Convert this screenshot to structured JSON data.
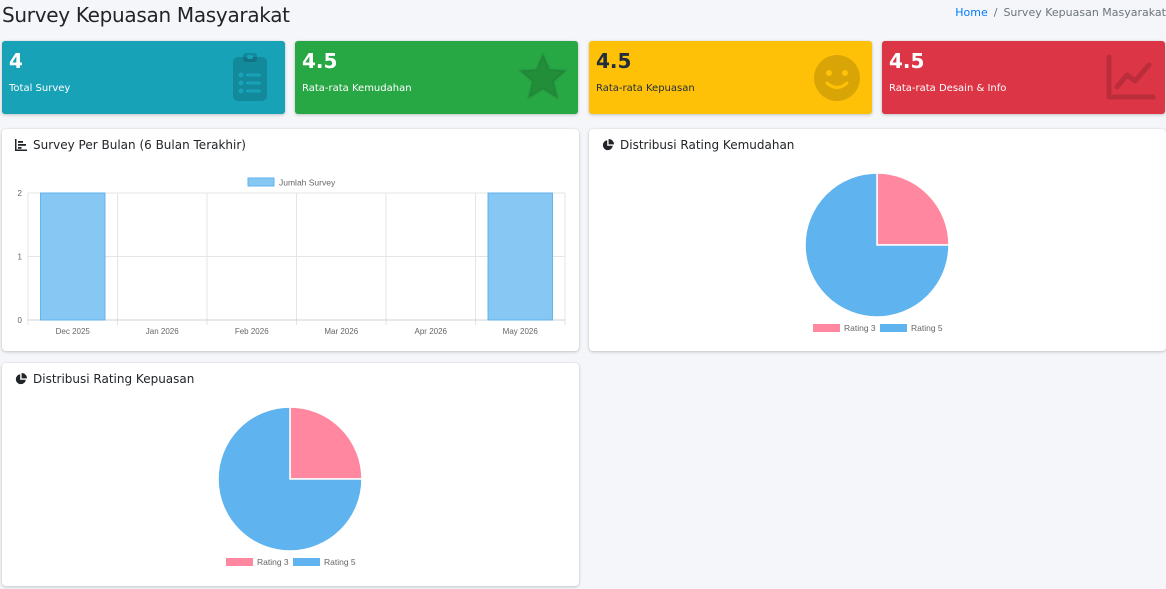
{
  "header": {
    "title": "Survey Kepuasan Masyarakat",
    "breadcrumb": {
      "home": "Home",
      "separator": "/",
      "current": "Survey Kepuasan Masyarakat"
    }
  },
  "stats": [
    {
      "value": "4",
      "label": "Total Survey",
      "color": "#17a2b8",
      "icon": "clipboard-list-icon"
    },
    {
      "value": "4.5",
      "label": "Rata-rata Kemudahan",
      "color": "#28a745",
      "icon": "star-icon"
    },
    {
      "value": "4.5",
      "label": "Rata-rata Kepuasan",
      "color": "#ffc107",
      "icon": "smile-icon"
    },
    {
      "value": "4.5",
      "label": "Rata-rata Desain & Info",
      "color": "#dc3545",
      "icon": "chart-line-icon"
    }
  ],
  "cards": {
    "monthly": {
      "title": "Survey Per Bulan (6 Bulan Terakhir)",
      "icon": "chart-bar-icon"
    },
    "kemudahan": {
      "title": "Distribusi Rating Kemudahan",
      "icon": "chart-pie-icon"
    },
    "kepuasan": {
      "title": "Distribusi Rating Kepuasan",
      "icon": "chart-pie-icon"
    }
  },
  "chart_data": [
    {
      "type": "bar",
      "categories": [
        "Dec 2025",
        "Jan 2026",
        "Feb 2026",
        "Mar 2026",
        "Apr 2026",
        "May 2026"
      ],
      "series": [
        {
          "name": "Jumlah Survey",
          "values": [
            2,
            0,
            0,
            0,
            0,
            2
          ],
          "color": "#87c7f3"
        }
      ],
      "ylim": [
        0,
        2
      ],
      "yticks": [
        0,
        1,
        2
      ],
      "legend": "top",
      "grid": true
    },
    {
      "type": "pie",
      "labels": [
        "Rating 3",
        "Rating 5"
      ],
      "values": [
        1,
        3
      ],
      "colors": [
        "#ff879f",
        "#5fb3ee"
      ],
      "legend": "bottom"
    },
    {
      "type": "pie",
      "labels": [
        "Rating 3",
        "Rating 5"
      ],
      "values": [
        1,
        3
      ],
      "colors": [
        "#ff879f",
        "#5fb3ee"
      ],
      "legend": "bottom"
    }
  ]
}
